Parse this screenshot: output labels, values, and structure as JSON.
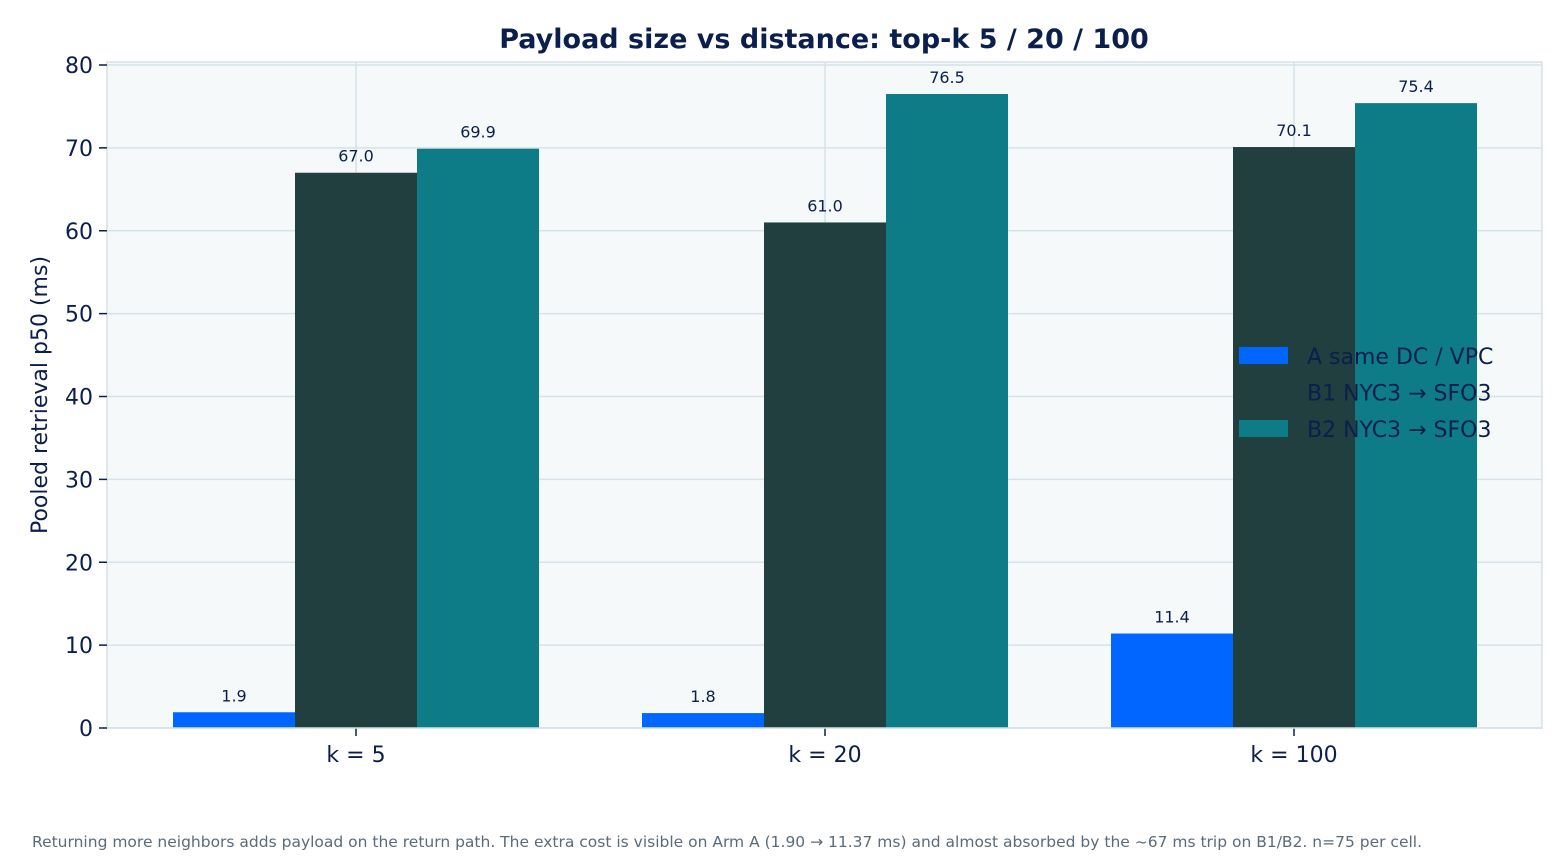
{
  "chart_data": {
    "type": "bar",
    "title": "Payload size vs distance: top-k 5 / 20 / 100",
    "ylabel": "Pooled retrieval p50 (ms)",
    "xlabel": "",
    "ylim": [
      0,
      80
    ],
    "yticks": [
      0,
      10,
      20,
      30,
      40,
      50,
      60,
      70,
      80
    ],
    "grid": true,
    "legend_position": "center-right",
    "categories": [
      "k = 5",
      "k = 20",
      "k = 100"
    ],
    "series": [
      {
        "name": "A  same DC / VPC",
        "color": "#0066ff",
        "values": [
          1.9,
          1.8,
          11.4
        ],
        "labels": [
          "1.9",
          "1.8",
          "11.4"
        ]
      },
      {
        "name": "B1  NYC3 → SFO3",
        "color": "#213f3f",
        "values": [
          67.0,
          61.0,
          70.1
        ],
        "labels": [
          "67.0",
          "61.0",
          "70.1"
        ]
      },
      {
        "name": "B2  NYC3 → SFO3",
        "color": "#0e7c86",
        "values": [
          69.9,
          76.5,
          75.4
        ],
        "labels": [
          "69.9",
          "76.5",
          "75.4"
        ]
      }
    ],
    "caption": "Returning more neighbors adds payload on the return path. The extra cost is visible on Arm A (1.90 → 11.37 ms) and almost absorbed by the ~67 ms trip on B1/B2. n=75 per cell."
  },
  "colors": {
    "plot_background": "#f5f9fa",
    "grid": "#d5e3e8",
    "axis_text": "#0b1f4d",
    "caption_text": "#5b6b7a"
  }
}
